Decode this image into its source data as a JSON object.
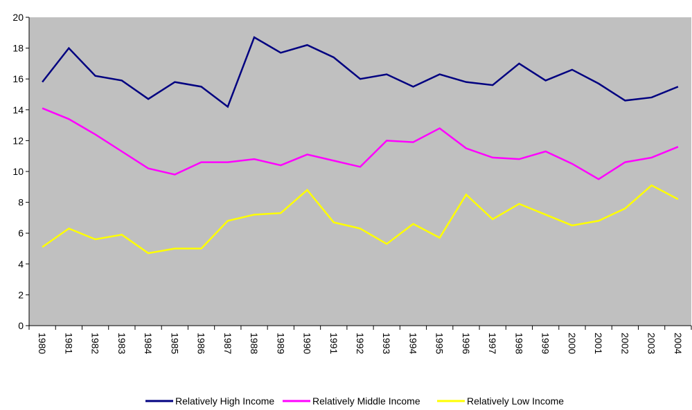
{
  "chart_data": {
    "type": "line",
    "categories": [
      "1980",
      "1981",
      "1982",
      "1983",
      "1984",
      "1985",
      "1986",
      "1987",
      "1988",
      "1989",
      "1990",
      "1991",
      "1992",
      "1993",
      "1994",
      "1995",
      "1996",
      "1997",
      "1998",
      "1999",
      "2000",
      "2001",
      "2002",
      "2003",
      "2004"
    ],
    "series": [
      {
        "name": "Relatively High Income",
        "color": "#000080",
        "values": [
          15.8,
          18.0,
          16.2,
          15.9,
          14.7,
          15.8,
          15.5,
          14.2,
          18.7,
          17.7,
          18.2,
          17.4,
          16.0,
          16.3,
          15.5,
          16.3,
          15.8,
          15.6,
          17.0,
          15.9,
          16.6,
          15.7,
          14.6,
          14.8,
          15.5
        ]
      },
      {
        "name": "Relatively Middle Income",
        "color": "#ff00ff",
        "values": [
          14.1,
          13.4,
          12.4,
          11.3,
          10.2,
          9.8,
          10.6,
          10.6,
          10.8,
          10.4,
          11.1,
          10.7,
          10.3,
          12.0,
          11.9,
          12.8,
          11.5,
          10.9,
          10.8,
          11.3,
          10.5,
          9.5,
          10.6,
          10.9,
          11.6
        ]
      },
      {
        "name": "Relatively Low Income",
        "color": "#ffff00",
        "values": [
          5.1,
          6.3,
          5.6,
          5.9,
          4.7,
          5.0,
          5.0,
          6.8,
          7.2,
          7.3,
          8.8,
          6.7,
          6.3,
          5.3,
          6.6,
          5.7,
          8.5,
          6.9,
          7.9,
          7.2,
          6.5,
          6.8,
          7.6,
          9.1,
          8.2
        ]
      }
    ],
    "ylim": [
      0,
      20
    ],
    "yticks": [
      0,
      2,
      4,
      6,
      8,
      10,
      12,
      14,
      16,
      18,
      20
    ],
    "grid": false,
    "background": "#c0c0c0",
    "legend": "bottom"
  }
}
